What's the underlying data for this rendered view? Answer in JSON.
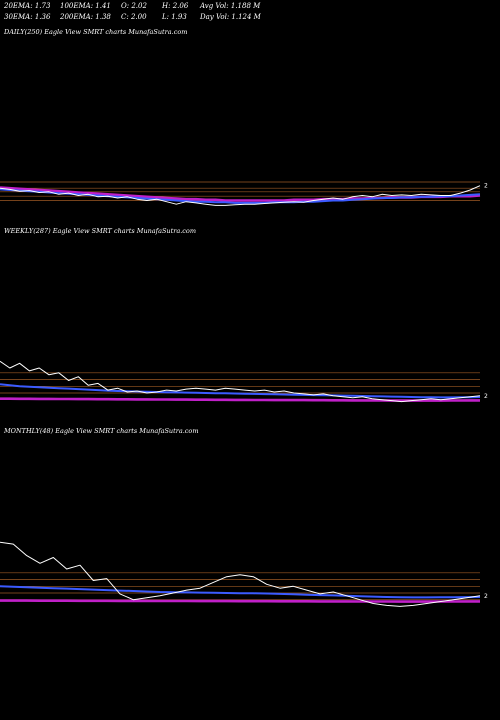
{
  "stats": {
    "ema20": "20EMA: 1.73",
    "ema30": "30EMA: 1.36",
    "ema100": "100EMA: 1.41",
    "ema200": "200EMA: 1.38",
    "open": "O: 2.02",
    "close": "C: 2.00",
    "high": "H: 2.06",
    "low": "L: 1.93",
    "avg_vol": "Avg Vol: 1.188  M",
    "day_vol": "Day Vol: 1.124  M"
  },
  "colors": {
    "background": "#000000",
    "price": "#ffffff",
    "ema_blue": "#3b5bff",
    "ema_magenta": "#c020c8",
    "level_lines": "#b8682a"
  },
  "chart_data": [
    {
      "type": "line",
      "title": "DAILY(250) Eagle   View  SMRT charts MunafaSutra.com",
      "last_label": "2",
      "ylim": [
        1.3,
        2.6
      ],
      "levels": [
        1.78,
        1.85,
        1.92,
        1.98,
        2.08
      ],
      "series": [
        {
          "role": "price",
          "values": [
            1.98,
            1.96,
            1.93,
            1.94,
            1.91,
            1.92,
            1.88,
            1.9,
            1.86,
            1.88,
            1.84,
            1.85,
            1.82,
            1.84,
            1.8,
            1.78,
            1.8,
            1.76,
            1.72,
            1.76,
            1.74,
            1.72,
            1.7,
            1.7,
            1.71,
            1.72,
            1.72,
            1.73,
            1.74,
            1.75,
            1.76,
            1.75,
            1.78,
            1.8,
            1.82,
            1.8,
            1.84,
            1.86,
            1.84,
            1.88,
            1.86,
            1.87,
            1.86,
            1.88,
            1.87,
            1.86,
            1.86,
            1.9,
            1.95,
            2.02
          ]
        },
        {
          "role": "ema_fast",
          "values": [
            1.96,
            1.95,
            1.94,
            1.93,
            1.92,
            1.91,
            1.9,
            1.89,
            1.88,
            1.87,
            1.86,
            1.85,
            1.84,
            1.83,
            1.82,
            1.81,
            1.8,
            1.79,
            1.78,
            1.77,
            1.76,
            1.76,
            1.75,
            1.75,
            1.74,
            1.74,
            1.74,
            1.74,
            1.75,
            1.75,
            1.75,
            1.76,
            1.76,
            1.77,
            1.78,
            1.78,
            1.79,
            1.8,
            1.81,
            1.82,
            1.82,
            1.83,
            1.83,
            1.84,
            1.84,
            1.85,
            1.85,
            1.86,
            1.87,
            1.88
          ]
        },
        {
          "role": "ema_slow",
          "values": [
            1.99,
            1.98,
            1.97,
            1.96,
            1.95,
            1.94,
            1.93,
            1.92,
            1.91,
            1.9,
            1.89,
            1.88,
            1.87,
            1.86,
            1.85,
            1.84,
            1.83,
            1.82,
            1.81,
            1.8,
            1.8,
            1.79,
            1.79,
            1.78,
            1.78,
            1.78,
            1.78,
            1.78,
            1.78,
            1.78,
            1.79,
            1.79,
            1.79,
            1.8,
            1.8,
            1.8,
            1.81,
            1.81,
            1.82,
            1.82,
            1.83,
            1.83,
            1.83,
            1.84,
            1.84,
            1.84,
            1.85,
            1.85,
            1.85,
            1.86
          ]
        }
      ]
    },
    {
      "type": "line",
      "title": "WEEKLY(287) Eagle   View  SMRT charts MunafaSutra.com",
      "last_label": "2",
      "ylim": [
        0,
        12
      ],
      "levels": [
        1.6,
        2.3,
        3.0,
        3.7,
        4.4
      ],
      "series": [
        {
          "role": "price",
          "values": [
            5.6,
            4.9,
            5.4,
            4.6,
            4.9,
            4.2,
            4.4,
            3.6,
            4.0,
            3.1,
            3.3,
            2.6,
            2.8,
            2.4,
            2.5,
            2.3,
            2.4,
            2.6,
            2.5,
            2.7,
            2.8,
            2.7,
            2.6,
            2.8,
            2.7,
            2.6,
            2.5,
            2.6,
            2.4,
            2.5,
            2.3,
            2.2,
            2.1,
            2.2,
            2.0,
            1.9,
            1.8,
            1.9,
            1.7,
            1.6,
            1.5,
            1.4,
            1.5,
            1.6,
            1.7,
            1.6,
            1.7,
            1.8,
            1.9,
            2.0
          ]
        },
        {
          "role": "ema_fast",
          "values": [
            3.2,
            3.1,
            3.0,
            2.95,
            2.9,
            2.85,
            2.8,
            2.75,
            2.7,
            2.65,
            2.6,
            2.55,
            2.5,
            2.48,
            2.45,
            2.42,
            2.4,
            2.38,
            2.36,
            2.34,
            2.32,
            2.3,
            2.28,
            2.26,
            2.24,
            2.22,
            2.2,
            2.18,
            2.16,
            2.14,
            2.12,
            2.1,
            2.08,
            2.06,
            2.04,
            2.02,
            2.0,
            1.98,
            1.96,
            1.94,
            1.92,
            1.9,
            1.88,
            1.86,
            1.85,
            1.84,
            1.84,
            1.85,
            1.86,
            1.88
          ]
        },
        {
          "role": "ema_slow",
          "values": [
            1.7,
            1.7,
            1.69,
            1.69,
            1.68,
            1.68,
            1.67,
            1.67,
            1.66,
            1.66,
            1.65,
            1.65,
            1.64,
            1.64,
            1.63,
            1.63,
            1.62,
            1.62,
            1.61,
            1.61,
            1.6,
            1.6,
            1.59,
            1.59,
            1.58,
            1.58,
            1.57,
            1.57,
            1.56,
            1.56,
            1.55,
            1.55,
            1.54,
            1.54,
            1.53,
            1.53,
            1.52,
            1.52,
            1.51,
            1.51,
            1.5,
            1.5,
            1.5,
            1.5,
            1.5,
            1.5,
            1.51,
            1.51,
            1.52,
            1.52
          ]
        }
      ]
    },
    {
      "type": "line",
      "title": "MONTHLY(48) Eagle   View  SMRT charts MunafaSutra.com",
      "last_label": "2",
      "ylim": [
        0,
        12
      ],
      "levels": [
        1.6,
        2.3,
        3.0,
        3.7,
        4.4
      ],
      "series": [
        {
          "role": "price",
          "values": [
            7.6,
            7.4,
            6.2,
            5.4,
            6.0,
            4.8,
            5.2,
            3.6,
            3.8,
            2.2,
            1.6,
            1.8,
            2.0,
            2.3,
            2.6,
            2.8,
            3.4,
            4.0,
            4.2,
            4.0,
            3.2,
            2.8,
            3.0,
            2.6,
            2.2,
            2.4,
            2.0,
            1.6,
            1.2,
            1.0,
            0.9,
            1.0,
            1.2,
            1.4,
            1.6,
            1.8,
            2.0
          ]
        },
        {
          "role": "ema_fast",
          "values": [
            3.0,
            2.95,
            2.9,
            2.85,
            2.8,
            2.75,
            2.7,
            2.65,
            2.6,
            2.55,
            2.5,
            2.45,
            2.4,
            2.38,
            2.36,
            2.34,
            2.32,
            2.3,
            2.28,
            2.26,
            2.24,
            2.2,
            2.16,
            2.12,
            2.08,
            2.04,
            2.0,
            1.96,
            1.92,
            1.88,
            1.86,
            1.84,
            1.84,
            1.85,
            1.86,
            1.87,
            1.88
          ]
        },
        {
          "role": "ema_slow",
          "values": [
            1.5,
            1.5,
            1.5,
            1.49,
            1.49,
            1.49,
            1.48,
            1.48,
            1.48,
            1.47,
            1.47,
            1.47,
            1.46,
            1.46,
            1.46,
            1.45,
            1.45,
            1.45,
            1.44,
            1.44,
            1.44,
            1.43,
            1.43,
            1.43,
            1.42,
            1.42,
            1.42,
            1.41,
            1.41,
            1.41,
            1.4,
            1.4,
            1.4,
            1.41,
            1.41,
            1.42,
            1.42
          ]
        }
      ]
    }
  ]
}
